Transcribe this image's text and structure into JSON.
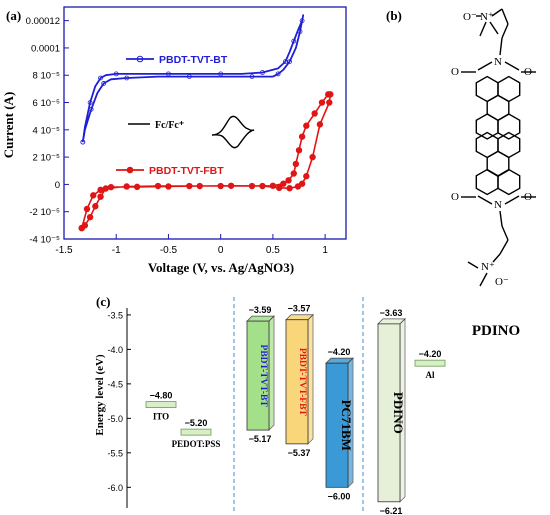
{
  "panel_labels": {
    "a": "(a)",
    "b": "(b)",
    "c": "(c)"
  },
  "molecule": {
    "name": "PDINO"
  },
  "chart_data": [
    {
      "type": "line",
      "panel": "(a)",
      "xlabel": "Voltage (V, vs. Ag/AgNO3)",
      "ylabel": "Current (A)",
      "xlim": [
        -1.5,
        1.2
      ],
      "ylim": [
        -4e-05,
        0.00013
      ],
      "x_ticks": [
        -1.5,
        -1,
        -0.5,
        0,
        0.5,
        1
      ],
      "x_tick_labels": [
        "-1.5",
        "-1",
        "-0.5",
        "0",
        "0.5",
        "1"
      ],
      "y_ticks": [
        -4e-05,
        -2e-05,
        0,
        2e-05,
        4e-05,
        6e-05,
        8e-05,
        0.0001,
        0.00012
      ],
      "y_tick_labels": [
        "-4 10⁻⁵",
        "-2 10⁻⁵",
        "0",
        "2 10⁻⁵",
        "4 10⁻⁵",
        "6 10⁻⁵",
        "8 10⁻⁵",
        "0.0001",
        "0.00012"
      ],
      "grid": false,
      "series": [
        {
          "name": "PBDT-TVT-BT",
          "color": "#1f1fd6",
          "marker": "open-circle",
          "x": [
            -1.32,
            -1.3,
            -1.25,
            -1.2,
            -1.15,
            -1.1,
            -1.0,
            -0.8,
            -0.5,
            -0.2,
            0.0,
            0.2,
            0.4,
            0.55,
            0.62,
            0.66,
            0.7,
            0.74,
            0.78,
            0.79,
            0.76,
            0.72,
            0.66,
            0.6,
            0.55,
            0.5,
            0.3,
            0.0,
            -0.3,
            -0.6,
            -0.9,
            -1.05,
            -1.12,
            -1.18,
            -1.24,
            -1.3,
            -1.32
          ],
          "y": [
            3.1e-05,
            4.2e-05,
            6e-05,
            7.2e-05,
            7.8e-05,
            8e-05,
            8.1e-05,
            8.1e-05,
            8.1e-05,
            8.1e-05,
            8.1e-05,
            8.1e-05,
            8.2e-05,
            8.5e-05,
            9e-05,
            9.7e-05,
            0.000105,
            0.000113,
            0.00012,
            0.000124,
            0.000112,
            0.0001,
            9e-05,
            8.4e-05,
            8.1e-05,
            7.9e-05,
            7.9e-05,
            7.9e-05,
            7.9e-05,
            7.9e-05,
            7.8e-05,
            7.7e-05,
            7.4e-05,
            6.7e-05,
            5.5e-05,
            4e-05,
            3.1e-05
          ]
        },
        {
          "name": "PBDT-TVT-FBT",
          "color": "#e01515",
          "marker": "filled-circle",
          "x": [
            -1.33,
            -1.3,
            -1.25,
            -1.2,
            -1.15,
            -1.1,
            -0.9,
            -0.6,
            -0.3,
            0.0,
            0.3,
            0.5,
            0.6,
            0.65,
            0.7,
            0.72,
            0.75,
            0.78,
            0.82,
            0.9,
            0.97,
            1.03,
            1.05,
            1.04,
            0.95,
            0.88,
            0.82,
            0.78,
            0.74,
            0.66,
            0.56,
            0.4,
            0.1,
            -0.2,
            -0.5,
            -0.8,
            -1.05,
            -1.15,
            -1.22,
            -1.28,
            -1.33
          ],
          "y": [
            -3.2e-05,
            -3e-05,
            -2.4e-05,
            -1.6e-05,
            -9e-06,
            -3e-06,
            -1.5e-06,
            -1.2e-06,
            -1.2e-06,
            -1.2e-06,
            -1.2e-06,
            -1e-06,
            5e-07,
            3e-06,
            8e-06,
            1.5e-05,
            2.5e-05,
            3.5e-05,
            4.3e-05,
            5.2e-05,
            6e-05,
            6.6e-05,
            6.6e-05,
            6e-05,
            4.4e-05,
            2e-05,
            6e-06,
            5e-07,
            -1.5e-06,
            -2.8e-06,
            -2.5e-06,
            -1.2e-06,
            -1e-06,
            -1.2e-06,
            -1.5e-06,
            -1.8e-06,
            -2e-06,
            -4e-06,
            -8e-06,
            -1.8e-05,
            -3.2e-05
          ]
        }
      ],
      "inset": {
        "label": "Fc/Fc⁺"
      }
    },
    {
      "type": "bar",
      "panel": "(c)",
      "ylabel": "Energy level (eV)",
      "ylim": [
        -6.3,
        -3.4
      ],
      "y_ticks": [
        -3.5,
        -4.0,
        -4.5,
        -5.0,
        -5.5,
        -6.0
      ],
      "y_tick_labels": [
        "-3.5",
        "-4.0",
        "-4.5",
        "-5.0",
        "-5.5",
        "-6.0"
      ],
      "levels": [
        {
          "name": "ITO",
          "value": -4.8,
          "value_label": "−4.80"
        },
        {
          "name": "PEDOT:PSS",
          "value": -5.2,
          "value_label": "−5.20"
        },
        {
          "name": "Al",
          "value": -4.2,
          "value_label": "−4.20"
        }
      ],
      "bands": [
        {
          "name": "PBDT-TVT-BT",
          "lumo": -3.59,
          "homo": -5.17,
          "lumo_label": "−3.59",
          "homo_label": "−5.17",
          "fill": "#a4e08a",
          "name_color": "#1f1fd6"
        },
        {
          "name": "PBDT-TVT-FBT",
          "lumo": -3.57,
          "homo": -5.37,
          "lumo_label": "−3.57",
          "homo_label": "−5.37",
          "fill": "#f9d67a",
          "name_color": "#e01515"
        },
        {
          "name": "PC71BM",
          "lumo": -4.2,
          "homo": -6.0,
          "lumo_label": "−4.20",
          "homo_label": "−6.00",
          "fill": "#3b9ad6",
          "name_color": "#000000"
        },
        {
          "name": "PDINO",
          "lumo": -3.63,
          "homo": -6.21,
          "lumo_label": "−3.63",
          "homo_label": "−6.21",
          "fill": "#e6f0d8",
          "name_color": "#000000"
        }
      ]
    }
  ]
}
